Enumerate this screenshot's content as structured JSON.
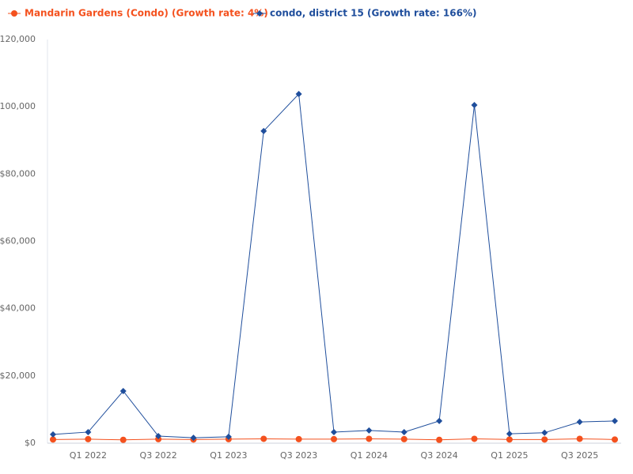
{
  "chart_data": {
    "type": "line",
    "categories": [
      null,
      "Q1 2022",
      null,
      "Q3 2022",
      null,
      "Q1 2023",
      null,
      "Q3 2023",
      null,
      "Q1 2024",
      null,
      "Q3 2024",
      null,
      "Q1 2025",
      null,
      "Q3 2025",
      null
    ],
    "series": [
      {
        "name": "Mandarin Gardens (Condo) (Growth rate: 4%)",
        "color": "#f4511e",
        "marker": "circle",
        "values": [
          1100,
          1200,
          1000,
          1200,
          1100,
          1200,
          1300,
          1200,
          1200,
          1300,
          1200,
          1000,
          1300,
          1100,
          1100,
          1300,
          1100
        ]
      },
      {
        "name": "condo, district 15 (Growth rate: 166%)",
        "color": "#1f4e9c",
        "marker": "diamond",
        "values": [
          2600,
          3300,
          15500,
          2100,
          1600,
          1900,
          92800,
          103800,
          3300,
          3800,
          3300,
          6600,
          100500,
          2800,
          3100,
          6300,
          6600
        ]
      }
    ],
    "ylim": [
      0,
      120000
    ],
    "yticks": [
      {
        "value": 0,
        "label": "$0"
      },
      {
        "value": 20000,
        "label": "$20,000"
      },
      {
        "value": 40000,
        "label": "$40,000"
      },
      {
        "value": 60000,
        "label": "$60,000"
      },
      {
        "value": 80000,
        "label": "$80,000"
      },
      {
        "value": 100000,
        "label": "$100,000"
      },
      {
        "value": 120000,
        "label": "$120,000"
      }
    ],
    "grid": false
  }
}
